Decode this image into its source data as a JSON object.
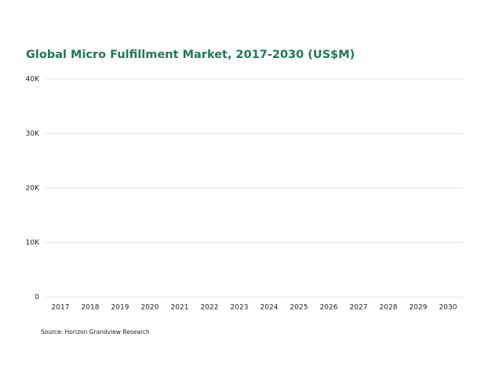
{
  "chart_data": {
    "type": "bar",
    "title": "Global Micro Fulfillment Market, 2017-2030 (US$M)",
    "categories": [
      "2017",
      "2018",
      "2019",
      "2020",
      "2021",
      "2022",
      "2023",
      "2024",
      "2025",
      "2026",
      "2027",
      "2028",
      "2029",
      "2030"
    ],
    "ylim": [
      0,
      40000
    ],
    "yticks": [
      0,
      {
        "value": 10000,
        "label": "10K"
      },
      {
        "value": 20000,
        "label": "20K"
      },
      {
        "value": 30000,
        "label": "30K"
      },
      {
        "value": 40000,
        "label": "40K"
      }
    ],
    "grid": true,
    "source": "Source: Horizon Grandview Research"
  }
}
